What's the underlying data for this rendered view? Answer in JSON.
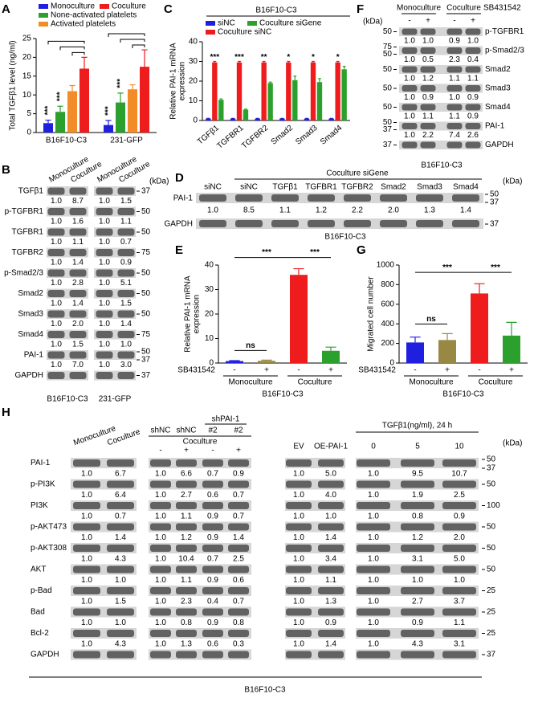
{
  "panel_labels": [
    "A",
    "B",
    "C",
    "D",
    "E",
    "F",
    "G",
    "H"
  ],
  "chart_data": [
    {
      "type": "bar",
      "ylabel": "Total TGFβ1 level (ng/ml)",
      "categories": [
        "B16F10-C3",
        "231-GFP"
      ],
      "series": [
        {
          "name": "Monoculture",
          "color": "#1f1fe0",
          "values": [
            2.5,
            2.0
          ],
          "errors": [
            0.8,
            1.2
          ]
        },
        {
          "name": "None-activated platelets",
          "color": "#2ca02c",
          "values": [
            5.5,
            8.0
          ],
          "errors": [
            1.5,
            2.5
          ]
        },
        {
          "name": "Activated platelets",
          "color": "#f28c28",
          "values": [
            11,
            11.5
          ],
          "errors": [
            1.5,
            1.2
          ]
        },
        {
          "name": "Coculture",
          "color": "#ee1c1c",
          "values": [
            17,
            17.5
          ],
          "errors": [
            3,
            4.5
          ]
        }
      ],
      "ylim": [
        0,
        25
      ],
      "yticks": [
        0,
        5,
        10,
        15,
        20,
        25
      ],
      "annotations": [
        "***",
        "***",
        "***",
        "***"
      ]
    },
    {
      "type": "bar",
      "title": "B16F10-C3",
      "ylabel": [
        "Relative PAI-1 mRNA",
        "expression"
      ],
      "categories": [
        "TGFβ1",
        "TGFBR1",
        "TGFBR2",
        "Smad2",
        "Smad3",
        "Smad4"
      ],
      "series": [
        {
          "name": "siNC",
          "color": "#1f1fe0",
          "values": [
            1,
            1,
            1,
            1,
            1,
            1
          ],
          "errors": [
            0.1,
            0.1,
            0.1,
            0.1,
            0.1,
            0.1
          ]
        },
        {
          "name": "Coculture siNC",
          "color": "#ee1c1c",
          "values": [
            29.5,
            29.5,
            29.5,
            29.5,
            29.5,
            29.5
          ],
          "errors": [
            0.5,
            0.5,
            0.5,
            0.5,
            0.5,
            0.5
          ]
        },
        {
          "name": "Coculture siGene",
          "color": "#2ca02c",
          "values": [
            10.5,
            5.5,
            19,
            20.5,
            19.5,
            26
          ],
          "errors": [
            0.5,
            0.3,
            0.5,
            2,
            1.8,
            1.5
          ]
        }
      ],
      "ylim": [
        0,
        40
      ],
      "yticks": [
        0,
        10,
        20,
        30,
        40
      ],
      "annotations": [
        "***",
        "***",
        "**",
        "*",
        "*",
        "*"
      ]
    },
    {
      "type": "bar",
      "ylabel": [
        "Relative PAI-1 mRNA",
        "expression"
      ],
      "categories": [
        "-",
        "+",
        "-",
        "+"
      ],
      "groups": [
        "Monoculture",
        "Coculture"
      ],
      "group_label": "SB431542",
      "xlabel": "B16F10-C3",
      "values": [
        0.8,
        0.9,
        36,
        5
      ],
      "errors": [
        0.2,
        0.3,
        2.5,
        1.5
      ],
      "colors": [
        "#1f1fe0",
        "#998844",
        "#ee1c1c",
        "#2ca02c"
      ],
      "ylim": [
        0,
        40
      ],
      "yticks": [
        0,
        10,
        20,
        30,
        40
      ],
      "annotations": [
        "ns",
        "***",
        "***"
      ]
    },
    {
      "type": "bar",
      "ylabel": "Migrated cell number",
      "categories": [
        "-",
        "+",
        "-",
        "+"
      ],
      "groups": [
        "Monoculture",
        "Coculture"
      ],
      "group_label": "SB431542",
      "xlabel": "B16F10-C3",
      "values": [
        210,
        235,
        710,
        280
      ],
      "errors": [
        55,
        65,
        100,
        135
      ],
      "colors": [
        "#1f1fe0",
        "#998844",
        "#ee1c1c",
        "#2ca02c"
      ],
      "ylim": [
        0,
        1000
      ],
      "yticks": [
        0,
        200,
        400,
        600,
        800,
        1000
      ],
      "annotations": [
        "ns",
        "***",
        "***"
      ]
    }
  ],
  "blots": {
    "B": {
      "headers": [
        "Monoculture",
        "Coculture",
        "Monoculture",
        "Coculture"
      ],
      "kda": "(kDa)",
      "groups": [
        "B16F10-C3",
        "231-GFP"
      ],
      "rows": [
        {
          "name": "TGFβ1",
          "values": [
            "1.0",
            "8.7",
            "1.0",
            "1.5"
          ],
          "markers": [
            "37"
          ]
        },
        {
          "name": "p-TGFBR1",
          "values": [
            "1.0",
            "1.6",
            "1.0",
            "1.1"
          ],
          "markers": [
            "50"
          ]
        },
        {
          "name": "TGFBR1",
          "values": [
            "1.0",
            "1.1",
            "1.0",
            "0.7"
          ],
          "markers": [
            "50"
          ]
        },
        {
          "name": "TGFBR2",
          "values": [
            "1.0",
            "1.4",
            "1.0",
            "0.9"
          ],
          "markers": [
            "75"
          ]
        },
        {
          "name": "p-Smad2/3",
          "values": [
            "1.0",
            "2.8",
            "1.0",
            "5.1"
          ],
          "markers": [
            "50"
          ]
        },
        {
          "name": "Smad2",
          "values": [
            "1.0",
            "1.4",
            "1.0",
            "1.5"
          ],
          "markers": [
            "50"
          ]
        },
        {
          "name": "Smad3",
          "values": [
            "1.0",
            "2.0",
            "1.0",
            "1.4"
          ],
          "markers": [
            "50"
          ]
        },
        {
          "name": "Smad4",
          "values": [
            "1.0",
            "1.5",
            "1.0",
            "1.0"
          ],
          "markers": [
            "75"
          ]
        },
        {
          "name": "PAI-1",
          "values": [
            "1.0",
            "7.0",
            "1.0",
            "3.0"
          ],
          "markers": [
            "50",
            "37"
          ]
        },
        {
          "name": "GAPDH",
          "markers": [
            "37"
          ]
        }
      ]
    },
    "D": {
      "title": "Coculture siGene",
      "lanes": [
        "siNC",
        "siNC",
        "TGFβ1",
        "TGFBR1",
        "TGFBR2",
        "Smad2",
        "Smad3",
        "Smad4"
      ],
      "kda": "(kDa)",
      "footer": "B16F10-C3",
      "rows": [
        {
          "name": "PAI-1",
          "values": [
            "1.0",
            "8.5",
            "1.1",
            "1.2",
            "2.2",
            "2.0",
            "1.3",
            "1.4"
          ],
          "markers": [
            "50",
            "37"
          ]
        },
        {
          "name": "GAPDH",
          "markers": [
            "37"
          ]
        }
      ]
    },
    "F": {
      "headers": [
        "Monoculture",
        "Coculture"
      ],
      "treatment": "SB431542",
      "signs": [
        "-",
        "+",
        "-",
        "+"
      ],
      "kda": "(kDa)",
      "footer": "B16F10-C3",
      "rows": [
        {
          "name": "p-TGFBR1",
          "values": [
            "1.0",
            "1.0",
            "0.9",
            "1.0"
          ],
          "markers": [
            "50"
          ]
        },
        {
          "name": "p-Smad2/3",
          "values": [
            "1.0",
            "0.5",
            "2.3",
            "0.4"
          ],
          "markers": [
            "75",
            "50"
          ]
        },
        {
          "name": "Smad2",
          "values": [
            "1.0",
            "1.2",
            "1.1",
            "1.1"
          ],
          "markers": [
            "50"
          ]
        },
        {
          "name": "Smad3",
          "values": [
            "1.0",
            "0.9",
            "1.0",
            "0.9"
          ],
          "markers": [
            "50"
          ]
        },
        {
          "name": "Smad4",
          "values": [
            "1.0",
            "1.1",
            "1.1",
            "0.9"
          ],
          "markers": [
            "50"
          ]
        },
        {
          "name": "PAI-1",
          "values": [
            "1.0",
            "2.2",
            "7.4",
            "2.6"
          ],
          "markers": [
            "50",
            "37"
          ]
        },
        {
          "name": "GAPDH",
          "markers": [
            "37"
          ]
        }
      ]
    },
    "H": {
      "kda": "(kDa)",
      "footer": "B16F10-C3",
      "rows": [
        {
          "name": "PAI-1",
          "markers": [
            "50",
            "37"
          ]
        },
        {
          "name": "p-PI3K",
          "markers": [
            "50"
          ]
        },
        {
          "name": "PI3K",
          "markers": [
            "100"
          ]
        },
        {
          "name": "p-AKT473",
          "markers": [
            "50"
          ]
        },
        {
          "name": "p-AKT308",
          "markers": [
            "50"
          ]
        },
        {
          "name": "AKT",
          "markers": [
            "50"
          ]
        },
        {
          "name": "p-Bad",
          "markers": [
            "25"
          ]
        },
        {
          "name": "Bad",
          "markers": [
            "25"
          ]
        },
        {
          "name": "Bcl-2",
          "markers": [
            "25"
          ]
        },
        {
          "name": "GAPDH",
          "markers": [
            "37"
          ]
        }
      ],
      "blocks": [
        {
          "lanes": [
            "Monoculture",
            "Coculture"
          ],
          "values": [
            [
              "1.0",
              "6.7"
            ],
            [
              "1.0",
              "6.4"
            ],
            [
              "1.0",
              "0.7"
            ],
            [
              "1.0",
              "1.4"
            ],
            [
              "1.0",
              "4.3"
            ],
            [
              "1.0",
              "1.0"
            ],
            [
              "1.0",
              "1.5"
            ],
            [
              "1.0",
              "1.0"
            ],
            [
              "1.0",
              "4.3"
            ]
          ]
        },
        {
          "lanes": [
            "shNC",
            "shNC",
            "#2",
            "#2"
          ],
          "super": "shPAI-1",
          "condition": "Coculture",
          "signs": [
            "-",
            "+",
            "-",
            "+"
          ],
          "values": [
            [
              "1.0",
              "6.6",
              "0.7",
              "0.9"
            ],
            [
              "1.0",
              "2.7",
              "0.6",
              "0.7"
            ],
            [
              "1.0",
              "1.1",
              "0.9",
              "0.7"
            ],
            [
              "1.0",
              "1.2",
              "0.9",
              "1.4"
            ],
            [
              "1.0",
              "10.4",
              "0.7",
              "2.5"
            ],
            [
              "1.0",
              "1.1",
              "0.9",
              "0.6"
            ],
            [
              "1.0",
              "2.3",
              "0.4",
              "0.7"
            ],
            [
              "1.0",
              "0.8",
              "0.9",
              "0.8"
            ],
            [
              "1.0",
              "1.3",
              "0.6",
              "0.3"
            ]
          ]
        },
        {
          "lanes": [
            "EV",
            "OE-PAI-1"
          ],
          "values": [
            [
              "1.0",
              "5.0"
            ],
            [
              "1.0",
              "4.0"
            ],
            [
              "1.0",
              "1.0"
            ],
            [
              "1.0",
              "1.4"
            ],
            [
              "1.0",
              "3.4"
            ],
            [
              "1.0",
              "1.1"
            ],
            [
              "1.0",
              "1.3"
            ],
            [
              "1.0",
              "0.9"
            ],
            [
              "1.0",
              "1.4"
            ]
          ]
        },
        {
          "title": "TGFβ1(ng/ml), 24 h",
          "lanes": [
            "0",
            "5",
            "10"
          ],
          "values": [
            [
              "1.0",
              "9.5",
              "10.7"
            ],
            [
              "1.0",
              "1.9",
              "2.5"
            ],
            [
              "1.0",
              "0.8",
              "0.9"
            ],
            [
              "1.0",
              "1.2",
              "2.0"
            ],
            [
              "1.0",
              "3.1",
              "5.0"
            ],
            [
              "1.0",
              "1.0",
              "1.0"
            ],
            [
              "1.0",
              "2.7",
              "3.7"
            ],
            [
              "1.0",
              "0.9",
              "1.1"
            ],
            [
              "1.0",
              "4.3",
              "3.1"
            ]
          ]
        }
      ]
    }
  }
}
